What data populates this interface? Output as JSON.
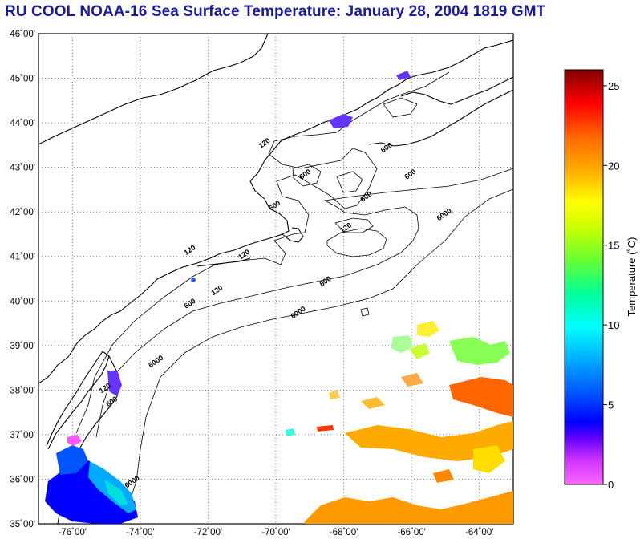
{
  "title": "RU COOL  NOAA-16  Sea Surface Temperature:  January 28, 2004 1819 GMT",
  "map": {
    "lat_labels": [
      {
        "value": 46,
        "text": "46˚00'"
      },
      {
        "value": 45,
        "text": "45˚00'"
      },
      {
        "value": 44,
        "text": "44˚00'"
      },
      {
        "value": 43,
        "text": "43˚00'"
      },
      {
        "value": 42,
        "text": "42˚00'"
      },
      {
        "value": 41,
        "text": "41˚00'"
      },
      {
        "value": 40,
        "text": "40˚00'"
      },
      {
        "value": 39,
        "text": "39˚00'"
      },
      {
        "value": 38,
        "text": "38˚00'"
      },
      {
        "value": 37,
        "text": "37˚00'"
      },
      {
        "value": 36,
        "text": "36˚00'"
      },
      {
        "value": 35,
        "text": "35˚00'"
      }
    ],
    "lon_labels": [
      {
        "value": -76,
        "text": "-76˚00'"
      },
      {
        "value": -74,
        "text": "-74˚00'"
      },
      {
        "value": -72,
        "text": "-72˚00'"
      },
      {
        "value": -70,
        "text": "-70˚00'"
      },
      {
        "value": -68,
        "text": "-68˚00'"
      },
      {
        "value": -66,
        "text": "-66˚00'"
      },
      {
        "value": -64,
        "text": "-64˚00'"
      }
    ],
    "lat_range": [
      35,
      46
    ],
    "lon_range": [
      -77,
      -63
    ],
    "contour_labels": [
      {
        "text": "120",
        "lon": -71.7,
        "lat": 40.2
      },
      {
        "text": "120",
        "lon": -75.0,
        "lat": 38.0
      },
      {
        "text": "120",
        "lon": -70.9,
        "lat": 41.0
      },
      {
        "text": "120",
        "lon": -72.5,
        "lat": 41.1
      },
      {
        "text": "120",
        "lon": -70.3,
        "lat": 43.5
      },
      {
        "text": "120",
        "lon": -67.9,
        "lat": 41.6
      },
      {
        "text": "600",
        "lon": -74.8,
        "lat": 37.7
      },
      {
        "text": "600",
        "lon": -72.5,
        "lat": 39.9
      },
      {
        "text": "600",
        "lon": -68.5,
        "lat": 40.4
      },
      {
        "text": "600",
        "lon": -70.0,
        "lat": 42.1
      },
      {
        "text": "600",
        "lon": -67.3,
        "lat": 42.3
      },
      {
        "text": "600",
        "lon": -69.1,
        "lat": 42.8
      },
      {
        "text": "600",
        "lon": -66.0,
        "lat": 42.8
      },
      {
        "text": "600",
        "lon": -66.7,
        "lat": 43.4
      },
      {
        "text": "6000",
        "lon": -73.5,
        "lat": 38.6
      },
      {
        "text": "6000",
        "lon": -69.3,
        "lat": 39.7
      },
      {
        "text": "6000",
        "lon": -65.0,
        "lat": 41.9
      },
      {
        "text": "6000",
        "lon": -74.2,
        "lat": 35.9
      }
    ]
  },
  "colorbar": {
    "label": "Temperature (˚C)",
    "range": [
      0,
      26
    ],
    "ticks": [
      {
        "value": 0,
        "text": "0"
      },
      {
        "value": 5,
        "text": "5"
      },
      {
        "value": 10,
        "text": "10"
      },
      {
        "value": 15,
        "text": "15"
      },
      {
        "value": 20,
        "text": "20"
      },
      {
        "value": 25,
        "text": "25"
      }
    ],
    "colors": [
      "#ff66ff",
      "#cc33ff",
      "#6600ff",
      "#0000ff",
      "#0066ff",
      "#00ccff",
      "#00ffcc",
      "#66ff66",
      "#ccff33",
      "#ffff00",
      "#ffaa00",
      "#ff6600",
      "#ff0000",
      "#cc0000",
      "#800000"
    ]
  }
}
